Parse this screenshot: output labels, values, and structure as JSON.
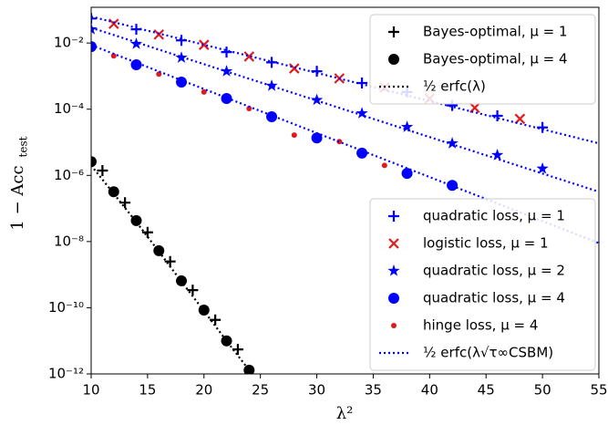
{
  "chart_data": {
    "type": "scatter",
    "xlabel": "λ²",
    "ylabel": "1 − Acc",
    "ylabel_subscript": "test",
    "xlim": [
      10,
      55
    ],
    "xticks": [
      10,
      15,
      20,
      25,
      30,
      35,
      40,
      45,
      50,
      55
    ],
    "ylim": [
      1e-12,
      0.12
    ],
    "log_y": true,
    "yticks": [
      {
        "value": 0.01,
        "label": "10⁻²"
      },
      {
        "value": 0.0001,
        "label": "10⁻⁴"
      },
      {
        "value": 1e-06,
        "label": "10⁻⁶"
      },
      {
        "value": 1e-08,
        "label": "10⁻⁸"
      },
      {
        "value": 1e-10,
        "label": "10⁻¹⁰"
      },
      {
        "value": 1e-12,
        "label": "10⁻¹²"
      }
    ],
    "series": [
      {
        "name": "Bayes-optimal, μ = 1",
        "type": "scatter",
        "marker": "plus",
        "color": "#000000",
        "legend": "upper right",
        "x": [
          11,
          13,
          15,
          17,
          19,
          21,
          23
        ],
        "values": [
          1.4e-06,
          1.5e-07,
          1.9e-08,
          2.5e-09,
          3.4e-10,
          4.3e-11,
          5.5e-12
        ]
      },
      {
        "name": "Bayes-optimal, μ = 4",
        "type": "scatter",
        "marker": "circle",
        "color": "#000000",
        "legend": "upper right",
        "x": [
          10,
          12,
          14,
          16,
          18,
          20,
          22,
          24
        ],
        "values": [
          2.6e-06,
          3.2e-07,
          4.3e-08,
          5.3e-09,
          6.5e-10,
          8.5e-11,
          1e-11,
          1.3e-12
        ]
      },
      {
        "name": "½ erfc(λ)",
        "type": "line",
        "color": "#000000",
        "legend": "upper right",
        "x": [
          10,
          12,
          14,
          16,
          18,
          20,
          22,
          24
        ],
        "values": [
          2e-06,
          2.8e-07,
          3.9e-08,
          5e-09,
          6.2e-10,
          8e-11,
          1e-11,
          1.3e-12
        ]
      },
      {
        "name": "quadratic loss, μ = 1",
        "type": "scatter",
        "marker": "plus",
        "color": "#0000ff",
        "legend": "lower right",
        "x": [
          10,
          14,
          18,
          22,
          26,
          30,
          34,
          38,
          42,
          46,
          50
        ],
        "values": [
          0.055,
          0.026,
          0.012,
          0.0053,
          0.0026,
          0.0014,
          0.00062,
          0.00033,
          0.00013,
          6.3e-05,
          2.8e-05
        ]
      },
      {
        "name": "logistic loss, μ = 1",
        "type": "scatter",
        "marker": "cross",
        "color": "#e31a1c",
        "legend": "lower right",
        "x": [
          12,
          16,
          20,
          24,
          28,
          32,
          36,
          40,
          44,
          48
        ],
        "values": [
          0.038,
          0.018,
          0.0088,
          0.0039,
          0.0017,
          0.00085,
          0.00045,
          0.00021,
          0.00011,
          5.1e-05
        ]
      },
      {
        "name": "quadratic loss, μ = 2",
        "type": "scatter",
        "marker": "star",
        "color": "#0000ff",
        "legend": "lower right",
        "x": [
          10,
          14,
          18,
          22,
          26,
          30,
          34,
          38,
          42,
          46,
          50
        ],
        "values": [
          0.026,
          0.0094,
          0.0036,
          0.0014,
          0.00051,
          0.00019,
          7.5e-05,
          2.9e-05,
          9.3e-06,
          4.1e-06,
          1.6e-06
        ]
      },
      {
        "name": "quadratic loss, μ = 4",
        "type": "scatter",
        "marker": "circle",
        "color": "#0000ff",
        "legend": "lower right",
        "x": [
          10,
          14,
          18,
          22,
          26,
          30,
          34,
          38,
          42
        ],
        "values": [
          0.0078,
          0.0022,
          0.00066,
          0.00021,
          5.9e-05,
          1.35e-05,
          4.7e-06,
          1.15e-06,
          5e-07
        ]
      },
      {
        "name": "hinge loss, μ = 4",
        "type": "scatter",
        "marker": "dot",
        "color": "#e31a1c",
        "legend": "lower right",
        "x": [
          12,
          16,
          20,
          24,
          28,
          32,
          36
        ],
        "values": [
          0.0041,
          0.00115,
          0.00033,
          0.000105,
          1.65e-05,
          1.05e-05,
          2e-06
        ]
      },
      {
        "name": "½ erfc(λ√τ∞CSBM)",
        "type": "line",
        "color": "#0000ff",
        "legend": "lower right",
        "x": [
          10,
          55
        ],
        "values": [
          0.063,
          9.3e-06
        ]
      },
      {
        "type": "line",
        "color": "#0000ff",
        "x": [
          10,
          55
        ],
        "values": [
          0.029,
          3.2e-07
        ]
      },
      {
        "type": "line",
        "color": "#0000ff",
        "x": [
          10,
          55
        ],
        "values": [
          0.0087,
          9e-09
        ]
      }
    ]
  }
}
